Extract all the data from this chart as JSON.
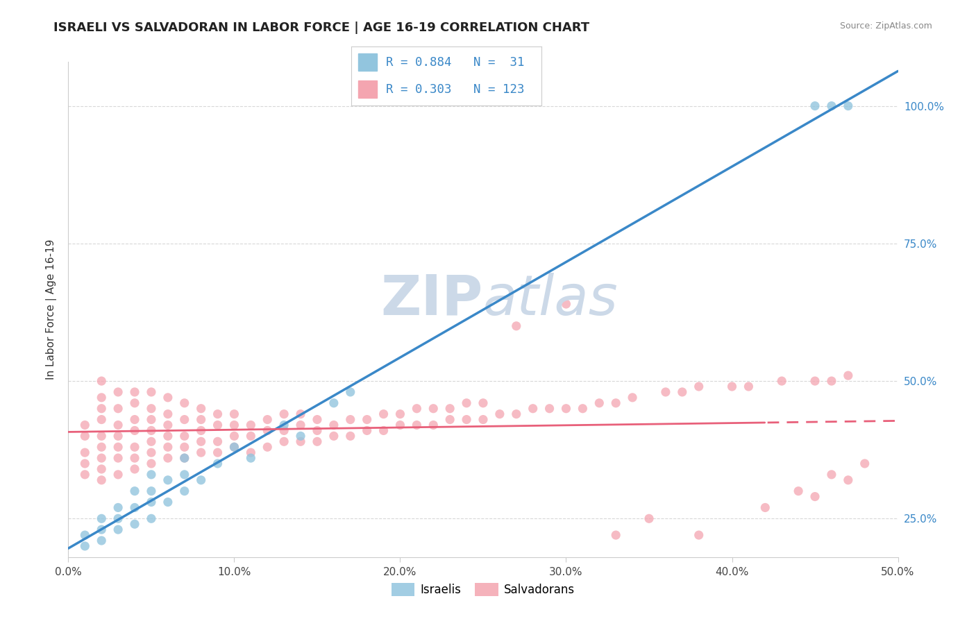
{
  "title": "ISRAELI VS SALVADORAN IN LABOR FORCE | AGE 16-19 CORRELATION CHART",
  "source_text": "Source: ZipAtlas.com",
  "ylabel": "In Labor Force | Age 16-19",
  "xlim": [
    0.0,
    0.5
  ],
  "ylim": [
    0.18,
    1.08
  ],
  "israeli_R": 0.884,
  "israeli_N": 31,
  "salvadoran_R": 0.303,
  "salvadoran_N": 123,
  "israeli_color": "#92c5de",
  "salvadoran_color": "#f4a5b0",
  "israeli_line_color": "#3a88c8",
  "salvadoran_line_color": "#e8607a",
  "watermark_color": "#ccd9e8",
  "bg_color": "#ffffff",
  "grid_color": "#d8d8d8",
  "ytick_labels": [
    "25.0%",
    "50.0%",
    "75.0%",
    "100.0%"
  ],
  "ytick_values": [
    0.25,
    0.5,
    0.75,
    1.0
  ],
  "xtick_labels": [
    "0.0%",
    "10.0%",
    "20.0%",
    "30.0%",
    "40.0%",
    "50.0%"
  ],
  "xtick_values": [
    0.0,
    0.1,
    0.2,
    0.3,
    0.4,
    0.5
  ],
  "israeli_scatter_x": [
    0.01,
    0.01,
    0.02,
    0.02,
    0.02,
    0.03,
    0.03,
    0.03,
    0.04,
    0.04,
    0.04,
    0.05,
    0.05,
    0.05,
    0.05,
    0.06,
    0.06,
    0.07,
    0.07,
    0.07,
    0.08,
    0.09,
    0.1,
    0.11,
    0.13,
    0.14,
    0.16,
    0.17,
    0.45,
    0.46,
    0.47
  ],
  "israeli_scatter_y": [
    0.2,
    0.22,
    0.21,
    0.23,
    0.25,
    0.23,
    0.25,
    0.27,
    0.24,
    0.27,
    0.3,
    0.25,
    0.28,
    0.3,
    0.33,
    0.28,
    0.32,
    0.3,
    0.33,
    0.36,
    0.32,
    0.35,
    0.38,
    0.36,
    0.42,
    0.4,
    0.46,
    0.48,
    1.0,
    1.0,
    1.0
  ],
  "salvadoran_scatter_x": [
    0.01,
    0.01,
    0.01,
    0.01,
    0.01,
    0.02,
    0.02,
    0.02,
    0.02,
    0.02,
    0.02,
    0.02,
    0.02,
    0.02,
    0.03,
    0.03,
    0.03,
    0.03,
    0.03,
    0.03,
    0.03,
    0.04,
    0.04,
    0.04,
    0.04,
    0.04,
    0.04,
    0.04,
    0.05,
    0.05,
    0.05,
    0.05,
    0.05,
    0.05,
    0.05,
    0.06,
    0.06,
    0.06,
    0.06,
    0.06,
    0.06,
    0.07,
    0.07,
    0.07,
    0.07,
    0.07,
    0.08,
    0.08,
    0.08,
    0.08,
    0.08,
    0.09,
    0.09,
    0.09,
    0.09,
    0.1,
    0.1,
    0.1,
    0.1,
    0.11,
    0.11,
    0.11,
    0.12,
    0.12,
    0.12,
    0.13,
    0.13,
    0.13,
    0.14,
    0.14,
    0.14,
    0.15,
    0.15,
    0.15,
    0.16,
    0.16,
    0.17,
    0.17,
    0.18,
    0.18,
    0.19,
    0.19,
    0.2,
    0.2,
    0.21,
    0.21,
    0.22,
    0.22,
    0.23,
    0.23,
    0.24,
    0.24,
    0.25,
    0.25,
    0.26,
    0.27,
    0.28,
    0.29,
    0.3,
    0.31,
    0.32,
    0.33,
    0.34,
    0.36,
    0.37,
    0.38,
    0.4,
    0.41,
    0.43,
    0.45,
    0.46,
    0.47,
    0.27,
    0.3,
    0.33,
    0.35,
    0.38,
    0.42,
    0.44,
    0.45,
    0.46,
    0.47,
    0.48
  ],
  "salvadoran_scatter_y": [
    0.33,
    0.35,
    0.37,
    0.4,
    0.42,
    0.32,
    0.34,
    0.36,
    0.38,
    0.4,
    0.43,
    0.45,
    0.47,
    0.5,
    0.33,
    0.36,
    0.38,
    0.4,
    0.42,
    0.45,
    0.48,
    0.34,
    0.36,
    0.38,
    0.41,
    0.43,
    0.46,
    0.48,
    0.35,
    0.37,
    0.39,
    0.41,
    0.43,
    0.45,
    0.48,
    0.36,
    0.38,
    0.4,
    0.42,
    0.44,
    0.47,
    0.36,
    0.38,
    0.4,
    0.43,
    0.46,
    0.37,
    0.39,
    0.41,
    0.43,
    0.45,
    0.37,
    0.39,
    0.42,
    0.44,
    0.38,
    0.4,
    0.42,
    0.44,
    0.37,
    0.4,
    0.42,
    0.38,
    0.41,
    0.43,
    0.39,
    0.41,
    0.44,
    0.39,
    0.42,
    0.44,
    0.39,
    0.41,
    0.43,
    0.4,
    0.42,
    0.4,
    0.43,
    0.41,
    0.43,
    0.41,
    0.44,
    0.42,
    0.44,
    0.42,
    0.45,
    0.42,
    0.45,
    0.43,
    0.45,
    0.43,
    0.46,
    0.43,
    0.46,
    0.44,
    0.44,
    0.45,
    0.45,
    0.45,
    0.45,
    0.46,
    0.46,
    0.47,
    0.48,
    0.48,
    0.49,
    0.49,
    0.49,
    0.5,
    0.5,
    0.5,
    0.51,
    0.6,
    0.64,
    0.22,
    0.25,
    0.22,
    0.27,
    0.3,
    0.29,
    0.33,
    0.32,
    0.35
  ]
}
